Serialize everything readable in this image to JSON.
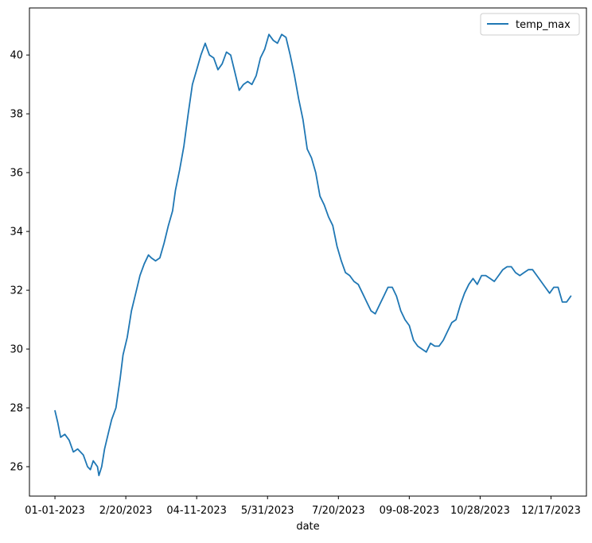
{
  "chart_data": {
    "type": "line",
    "title": "",
    "xlabel": "date",
    "ylabel": "",
    "grid": false,
    "legend_position": "top-right",
    "x_ticks": [
      "01-01-2023",
      "2/20/2023",
      "04-11-2023",
      "5/31/2023",
      "7/20/2023",
      "09-08-2023",
      "10/28/2023",
      "12/17/2023"
    ],
    "y_ticks": [
      "26",
      "28",
      "30",
      "32",
      "34",
      "36",
      "38",
      "40"
    ],
    "xlim": [
      "2022-12-14",
      "2024-01-11"
    ],
    "ylim": [
      25.0,
      41.6
    ],
    "series": [
      {
        "name": "temp_max",
        "color": "#1f77b4",
        "points": [
          [
            "2023-01-01",
            27.9
          ],
          [
            "2023-01-03",
            27.5
          ],
          [
            "2023-01-05",
            27.0
          ],
          [
            "2023-01-08",
            27.1
          ],
          [
            "2023-01-11",
            26.9
          ],
          [
            "2023-01-14",
            26.5
          ],
          [
            "2023-01-17",
            26.6
          ],
          [
            "2023-01-21",
            26.4
          ],
          [
            "2023-01-24",
            26.0
          ],
          [
            "2023-01-26",
            25.9
          ],
          [
            "2023-01-28",
            26.2
          ],
          [
            "2023-01-31",
            26.0
          ],
          [
            "2023-02-01",
            25.7
          ],
          [
            "2023-02-03",
            26.0
          ],
          [
            "2023-02-05",
            26.6
          ],
          [
            "2023-02-08",
            27.2
          ],
          [
            "2023-02-10",
            27.6
          ],
          [
            "2023-02-13",
            28.0
          ],
          [
            "2023-02-16",
            29.0
          ],
          [
            "2023-02-18",
            29.8
          ],
          [
            "2023-02-21",
            30.4
          ],
          [
            "2023-02-24",
            31.3
          ],
          [
            "2023-02-27",
            31.9
          ],
          [
            "2023-03-02",
            32.5
          ],
          [
            "2023-03-05",
            32.9
          ],
          [
            "2023-03-08",
            33.2
          ],
          [
            "2023-03-10",
            33.1
          ],
          [
            "2023-03-13",
            33.0
          ],
          [
            "2023-03-16",
            33.1
          ],
          [
            "2023-03-19",
            33.6
          ],
          [
            "2023-03-22",
            34.2
          ],
          [
            "2023-03-25",
            34.7
          ],
          [
            "2023-03-27",
            35.4
          ],
          [
            "2023-03-30",
            36.1
          ],
          [
            "2023-04-02",
            36.9
          ],
          [
            "2023-04-05",
            38.0
          ],
          [
            "2023-04-08",
            39.0
          ],
          [
            "2023-04-11",
            39.5
          ],
          [
            "2023-04-14",
            40.0
          ],
          [
            "2023-04-17",
            40.4
          ],
          [
            "2023-04-20",
            40.0
          ],
          [
            "2023-04-23",
            39.9
          ],
          [
            "2023-04-26",
            39.5
          ],
          [
            "2023-04-29",
            39.7
          ],
          [
            "2023-05-02",
            40.1
          ],
          [
            "2023-05-05",
            40.0
          ],
          [
            "2023-05-08",
            39.4
          ],
          [
            "2023-05-11",
            38.8
          ],
          [
            "2023-05-14",
            39.0
          ],
          [
            "2023-05-17",
            39.1
          ],
          [
            "2023-05-20",
            39.0
          ],
          [
            "2023-05-23",
            39.3
          ],
          [
            "2023-05-26",
            39.9
          ],
          [
            "2023-05-29",
            40.2
          ],
          [
            "2023-06-01",
            40.7
          ],
          [
            "2023-06-04",
            40.5
          ],
          [
            "2023-06-07",
            40.4
          ],
          [
            "2023-06-10",
            40.7
          ],
          [
            "2023-06-13",
            40.6
          ],
          [
            "2023-06-16",
            40.0
          ],
          [
            "2023-06-19",
            39.3
          ],
          [
            "2023-06-22",
            38.5
          ],
          [
            "2023-06-25",
            37.8
          ],
          [
            "2023-06-28",
            36.8
          ],
          [
            "2023-07-01",
            36.5
          ],
          [
            "2023-07-04",
            36.0
          ],
          [
            "2023-07-07",
            35.2
          ],
          [
            "2023-07-10",
            34.9
          ],
          [
            "2023-07-13",
            34.5
          ],
          [
            "2023-07-16",
            34.2
          ],
          [
            "2023-07-19",
            33.5
          ],
          [
            "2023-07-22",
            33.0
          ],
          [
            "2023-07-25",
            32.6
          ],
          [
            "2023-07-28",
            32.5
          ],
          [
            "2023-07-31",
            32.3
          ],
          [
            "2023-08-03",
            32.2
          ],
          [
            "2023-08-06",
            31.9
          ],
          [
            "2023-08-09",
            31.6
          ],
          [
            "2023-08-12",
            31.3
          ],
          [
            "2023-08-15",
            31.2
          ],
          [
            "2023-08-18",
            31.5
          ],
          [
            "2023-08-21",
            31.8
          ],
          [
            "2023-08-24",
            32.1
          ],
          [
            "2023-08-27",
            32.1
          ],
          [
            "2023-08-30",
            31.8
          ],
          [
            "2023-09-02",
            31.3
          ],
          [
            "2023-09-05",
            31.0
          ],
          [
            "2023-09-08",
            30.8
          ],
          [
            "2023-09-11",
            30.3
          ],
          [
            "2023-09-14",
            30.1
          ],
          [
            "2023-09-17",
            30.0
          ],
          [
            "2023-09-20",
            29.9
          ],
          [
            "2023-09-23",
            30.2
          ],
          [
            "2023-09-26",
            30.1
          ],
          [
            "2023-09-29",
            30.1
          ],
          [
            "2023-10-02",
            30.3
          ],
          [
            "2023-10-05",
            30.6
          ],
          [
            "2023-10-08",
            30.9
          ],
          [
            "2023-10-11",
            31.0
          ],
          [
            "2023-10-14",
            31.5
          ],
          [
            "2023-10-17",
            31.9
          ],
          [
            "2023-10-20",
            32.2
          ],
          [
            "2023-10-23",
            32.4
          ],
          [
            "2023-10-26",
            32.2
          ],
          [
            "2023-10-29",
            32.5
          ],
          [
            "2023-11-01",
            32.5
          ],
          [
            "2023-11-04",
            32.4
          ],
          [
            "2023-11-07",
            32.3
          ],
          [
            "2023-11-10",
            32.5
          ],
          [
            "2023-11-13",
            32.7
          ],
          [
            "2023-11-16",
            32.8
          ],
          [
            "2023-11-19",
            32.8
          ],
          [
            "2023-11-22",
            32.6
          ],
          [
            "2023-11-25",
            32.5
          ],
          [
            "2023-11-28",
            32.6
          ],
          [
            "2023-12-01",
            32.7
          ],
          [
            "2023-12-04",
            32.7
          ],
          [
            "2023-12-07",
            32.5
          ],
          [
            "2023-12-10",
            32.3
          ],
          [
            "2023-12-13",
            32.1
          ],
          [
            "2023-12-16",
            31.9
          ],
          [
            "2023-12-19",
            32.1
          ],
          [
            "2023-12-22",
            32.1
          ],
          [
            "2023-12-25",
            31.6
          ],
          [
            "2023-12-28",
            31.6
          ],
          [
            "2023-12-31",
            31.8
          ]
        ]
      }
    ]
  }
}
